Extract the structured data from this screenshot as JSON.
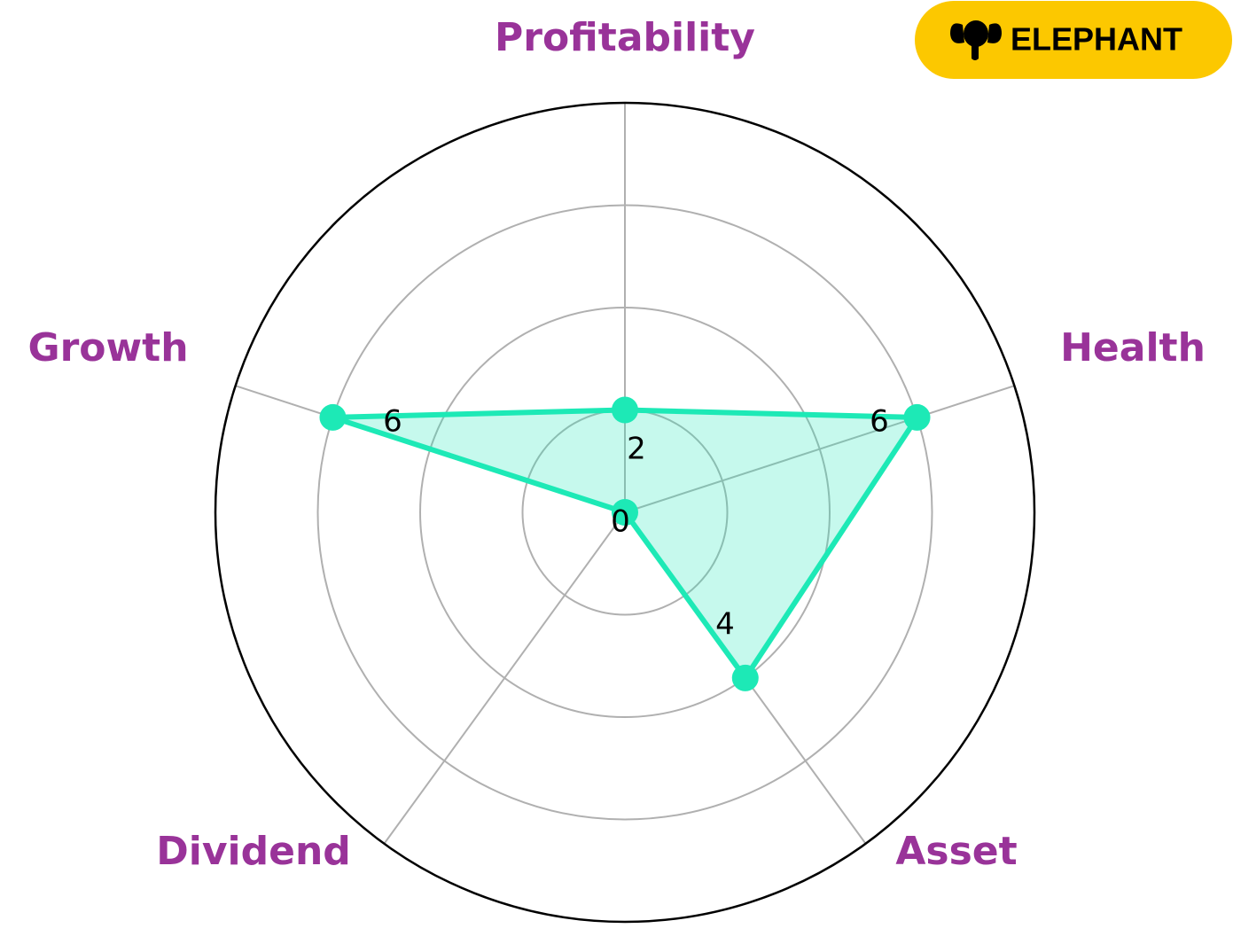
{
  "chart_data": {
    "type": "radar",
    "categories": [
      "Profitability",
      "Health",
      "Asset",
      "Dividend",
      "Growth"
    ],
    "values": [
      2,
      6,
      4,
      0,
      6
    ],
    "color": "#1de9b6",
    "label_color": "#993399",
    "ylim": [
      0,
      8
    ],
    "yticks": [
      2,
      4,
      6
    ],
    "grid": true
  },
  "logo": {
    "text": "ELEPHANT",
    "color": "#fcc800"
  }
}
